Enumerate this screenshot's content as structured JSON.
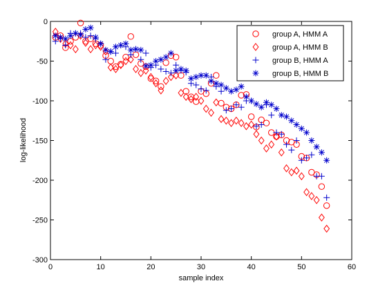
{
  "chart_data": {
    "type": "scatter",
    "title": "",
    "xlabel": "sample index",
    "ylabel": "log-likelihood",
    "xlim": [
      0,
      60
    ],
    "ylim": [
      -300,
      0
    ],
    "xticks": [
      0,
      10,
      20,
      30,
      40,
      50,
      60
    ],
    "yticks": [
      0,
      -50,
      -100,
      -150,
      -200,
      -250,
      -300
    ],
    "xtick_labels": [
      "0",
      "10",
      "20",
      "30",
      "40",
      "50",
      "60"
    ],
    "ytick_labels": [
      "0",
      "-50",
      "-100",
      "-150",
      "-200",
      "-250",
      "-300"
    ],
    "grid": false,
    "legend_position": "top-right",
    "series": [
      {
        "name": "group A, HMM A",
        "marker": "circle",
        "color": "#ff0000",
        "x": [
          1,
          2,
          3,
          4,
          5,
          6,
          7,
          8,
          9,
          10,
          11,
          12,
          13,
          14,
          15,
          16,
          17,
          18,
          19,
          20,
          21,
          22,
          23,
          24,
          25,
          26,
          27,
          28,
          29,
          30,
          31,
          32,
          33,
          34,
          35,
          36,
          37,
          38,
          39,
          40,
          41,
          42,
          43,
          44,
          45,
          46,
          47,
          48,
          49,
          50,
          51,
          52,
          53,
          54,
          55
        ],
        "values": [
          -20,
          -18,
          -33,
          -25,
          -20,
          -2,
          -25,
          -22,
          -28,
          -30,
          -43,
          -50,
          -57,
          -54,
          -45,
          -19,
          -42,
          -53,
          -57,
          -72,
          -75,
          -82,
          -52,
          -43,
          -45,
          -68,
          -88,
          -95,
          -101,
          -88,
          -91,
          -78,
          -68,
          -103,
          -108,
          -110,
          -105,
          -93,
          -92,
          -120,
          -133,
          -124,
          -128,
          -140,
          -145,
          -143,
          -150,
          -152,
          -155,
          -170,
          -172,
          -190,
          -193,
          -208,
          -232
        ]
      },
      {
        "name": "group A, HMM B",
        "marker": "diamond",
        "color": "#ff0000",
        "x": [
          1,
          2,
          3,
          4,
          5,
          6,
          7,
          8,
          9,
          10,
          11,
          12,
          13,
          14,
          15,
          16,
          17,
          18,
          19,
          20,
          21,
          22,
          23,
          24,
          25,
          26,
          27,
          28,
          29,
          30,
          31,
          32,
          33,
          34,
          35,
          36,
          37,
          38,
          39,
          40,
          41,
          42,
          43,
          44,
          45,
          46,
          47,
          48,
          49,
          50,
          51,
          52,
          53,
          54,
          55
        ],
        "values": [
          -13,
          -22,
          -28,
          -30,
          -35,
          -18,
          -27,
          -35,
          -30,
          -32,
          -38,
          -58,
          -60,
          -55,
          -50,
          -48,
          -60,
          -65,
          -62,
          -70,
          -78,
          -87,
          -75,
          -70,
          -68,
          -90,
          -95,
          -98,
          -95,
          -100,
          -110,
          -115,
          -102,
          -123,
          -125,
          -128,
          -125,
          -128,
          -132,
          -130,
          -142,
          -150,
          -160,
          -155,
          -145,
          -165,
          -185,
          -190,
          -188,
          -195,
          -215,
          -220,
          -225,
          -247,
          -261
        ]
      },
      {
        "name": "group B, HMM A",
        "marker": "plus",
        "color": "#0000cc",
        "x": [
          1,
          2,
          3,
          4,
          5,
          6,
          7,
          8,
          9,
          10,
          11,
          12,
          13,
          14,
          15,
          16,
          17,
          18,
          19,
          20,
          21,
          22,
          23,
          24,
          25,
          26,
          27,
          28,
          29,
          30,
          31,
          32,
          33,
          34,
          35,
          36,
          37,
          38,
          39,
          40,
          41,
          42,
          43,
          44,
          45,
          46,
          47,
          48,
          49,
          50,
          51,
          52,
          53,
          54,
          55
        ],
        "values": [
          -25,
          -22,
          -30,
          -15,
          -15,
          -15,
          -20,
          -18,
          -22,
          -28,
          -48,
          -38,
          -40,
          -30,
          -32,
          -42,
          -35,
          -48,
          -40,
          -58,
          -55,
          -60,
          -63,
          -65,
          -55,
          -62,
          -64,
          -78,
          -80,
          -85,
          -87,
          -70,
          -82,
          -88,
          -112,
          -110,
          -105,
          -108,
          -100,
          -100,
          -132,
          -130,
          -105,
          -118,
          -140,
          -142,
          -155,
          -162,
          -150,
          -175,
          -172,
          -168,
          -195,
          -195,
          -222
        ]
      },
      {
        "name": "group B, HMM B",
        "marker": "star",
        "color": "#0000cc",
        "x": [
          1,
          2,
          3,
          4,
          5,
          6,
          7,
          8,
          9,
          10,
          11,
          12,
          13,
          14,
          15,
          16,
          17,
          18,
          19,
          20,
          21,
          22,
          23,
          24,
          25,
          26,
          27,
          28,
          29,
          30,
          31,
          32,
          33,
          34,
          35,
          36,
          37,
          38,
          39,
          40,
          41,
          42,
          43,
          44,
          45,
          46,
          47,
          48,
          49,
          50,
          51,
          52,
          53,
          54,
          55
        ],
        "values": [
          -18,
          -20,
          -22,
          -18,
          -15,
          -17,
          -10,
          -8,
          -20,
          -28,
          -36,
          -38,
          -32,
          -30,
          -28,
          -36,
          -35,
          -36,
          -56,
          -55,
          -50,
          -48,
          -45,
          -40,
          -62,
          -60,
          -62,
          -72,
          -70,
          -68,
          -68,
          -75,
          -78,
          -80,
          -84,
          -88,
          -86,
          -82,
          -95,
          -100,
          -104,
          -108,
          -102,
          -105,
          -110,
          -118,
          -120,
          -125,
          -130,
          -135,
          -140,
          -150,
          -158,
          -165,
          -175
        ]
      }
    ]
  }
}
